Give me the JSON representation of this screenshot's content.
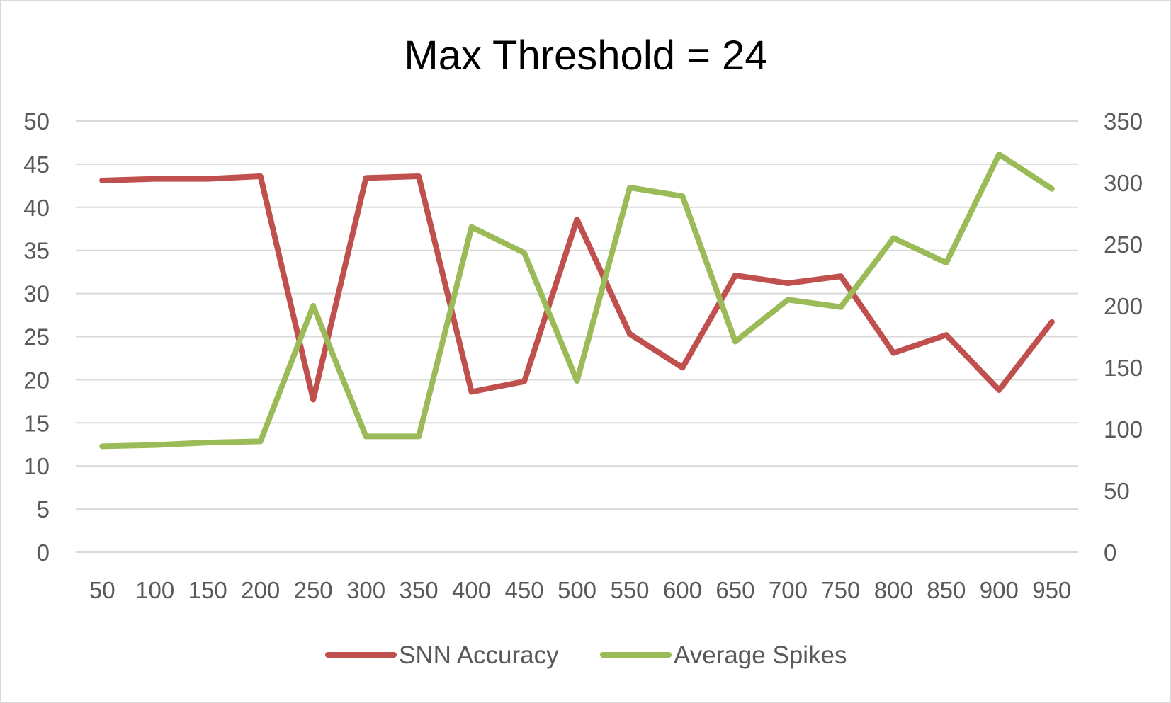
{
  "chart_data": {
    "type": "line",
    "title": "Max Threshold = 24",
    "categories": [
      "50",
      "100",
      "150",
      "200",
      "250",
      "300",
      "350",
      "400",
      "450",
      "500",
      "550",
      "600",
      "650",
      "700",
      "750",
      "800",
      "850",
      "900",
      "950"
    ],
    "y_left": {
      "ylim": [
        0,
        50
      ],
      "ticks": [
        0,
        5,
        10,
        15,
        20,
        25,
        30,
        35,
        40,
        45,
        50
      ]
    },
    "y_right": {
      "ylim": [
        0,
        350
      ],
      "ticks": [
        0,
        50,
        100,
        150,
        200,
        250,
        300,
        350
      ]
    },
    "grid": true,
    "legend": "bottom",
    "series": [
      {
        "name": "SNN Accuracy",
        "axis": "left",
        "color": "#c0504d",
        "values": [
          43.1,
          43.3,
          43.3,
          43.6,
          17.7,
          43.4,
          43.6,
          18.6,
          19.8,
          38.6,
          25.3,
          21.4,
          32.1,
          31.2,
          32.0,
          23.1,
          25.2,
          18.8,
          26.7
        ]
      },
      {
        "name": "Average Spikes",
        "axis": "right",
        "color": "#9bbb59",
        "values": [
          86,
          87,
          89,
          90,
          200,
          94,
          94,
          264,
          243,
          139,
          296,
          289,
          171,
          205,
          199,
          255,
          235,
          323,
          295
        ]
      }
    ]
  }
}
